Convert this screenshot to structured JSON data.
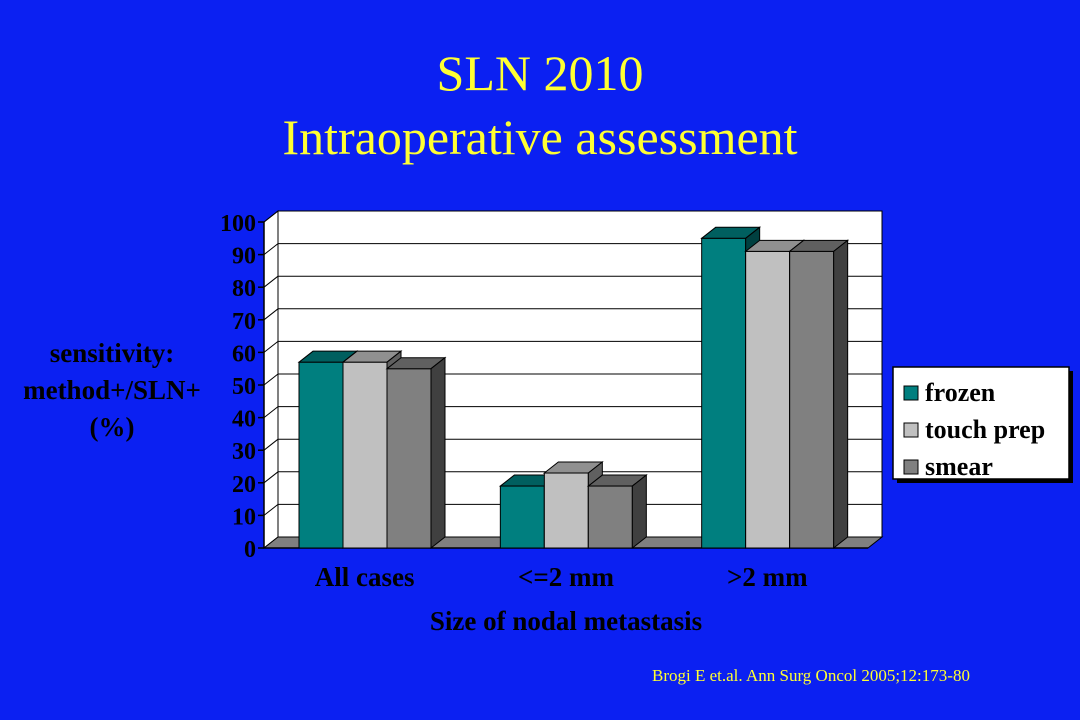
{
  "slide": {
    "title_line1": "SLN 2010",
    "title_line2": "Intraoperative assessment",
    "citation": "Brogi E et.al. Ann Surg Oncol 2005;12:173-80"
  },
  "colors": {
    "background": "#0b20f2",
    "title": "#ffff33",
    "frozen": "#007f7f",
    "touch_prep": "#c0c0c0",
    "smear": "#808080",
    "text": "#000000"
  },
  "chart_data": {
    "type": "bar",
    "categories": [
      "All cases",
      "<=2 mm",
      ">2 mm"
    ],
    "series": [
      {
        "name": "frozen",
        "values": [
          57,
          19,
          95
        ]
      },
      {
        "name": "touch prep",
        "values": [
          57,
          23,
          91
        ]
      },
      {
        "name": "smear",
        "values": [
          55,
          19,
          91
        ]
      }
    ],
    "xlabel": "Size of nodal metastasis",
    "ylabel_lines": [
      "sensitivity:",
      "method+/SLN+",
      "(%)"
    ],
    "ylim": [
      0,
      100
    ],
    "yticks": [
      "0",
      "10",
      "20",
      "30",
      "40",
      "50",
      "60",
      "70",
      "80",
      "90",
      "100"
    ],
    "grid": true,
    "style": "3d",
    "legend_position": "right"
  }
}
